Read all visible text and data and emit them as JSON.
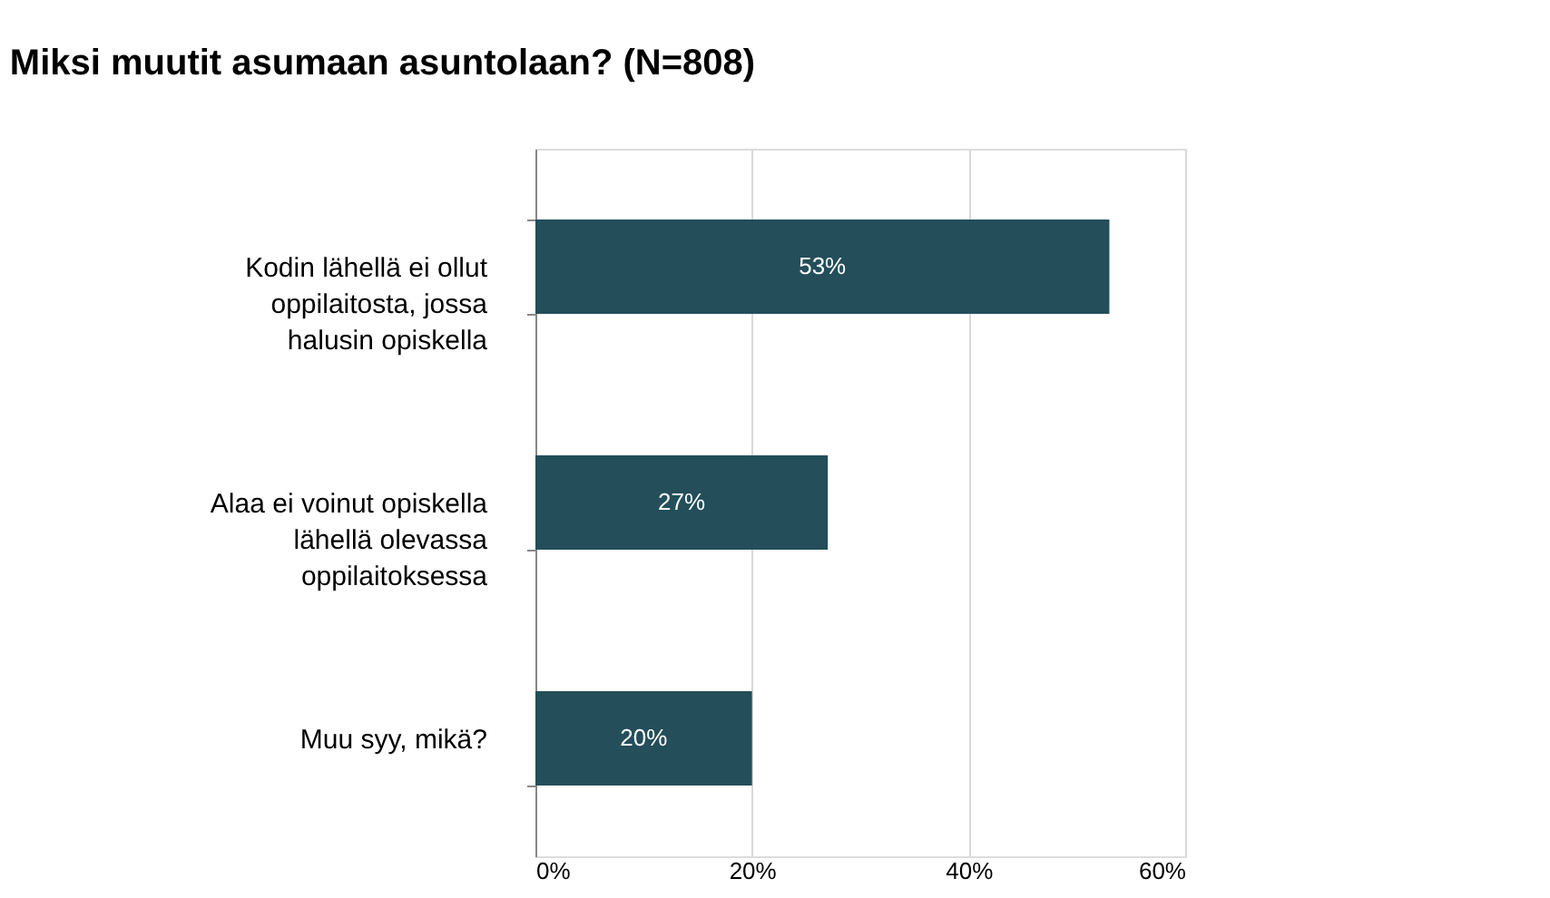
{
  "chart_data": {
    "type": "bar",
    "orientation": "horizontal",
    "title": "Miksi muutit asumaan asuntolaan? (N=808)",
    "categories": [
      "Kodin lähellä ei ollut oppilaitosta, jossa halusin opiskella",
      "Alaa ei voinut opiskella lähellä olevassa oppilaitoksessa",
      "Muu syy, mikä?"
    ],
    "values": [
      53,
      27,
      20
    ],
    "value_labels": [
      "53%",
      "27%",
      "20%"
    ],
    "color": "#234e5a",
    "xlim": [
      0,
      60
    ],
    "xticks": [
      {
        "value": 0,
        "label": "0%"
      },
      {
        "value": 20,
        "label": "20%"
      },
      {
        "value": 40,
        "label": "40%"
      },
      {
        "value": 60,
        "label": "60%"
      }
    ],
    "grid": "x"
  }
}
